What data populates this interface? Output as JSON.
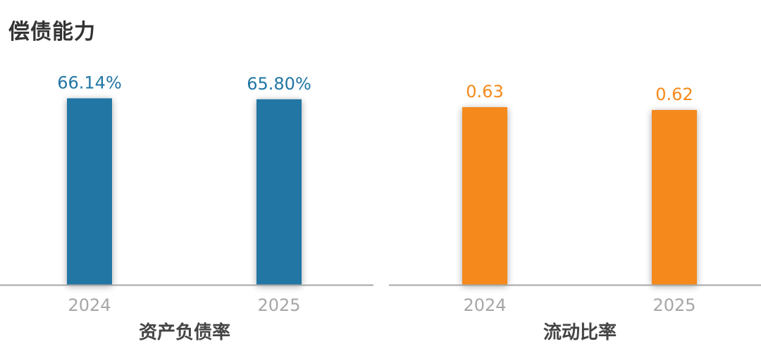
{
  "page": {
    "title": "偿债能力"
  },
  "chart_data": [
    {
      "type": "bar",
      "title": "资产负债率",
      "categories": [
        "2024",
        "2025"
      ],
      "values": [
        66.14,
        65.8
      ],
      "value_labels": [
        "66.14%",
        "65.80%"
      ],
      "unit": "%",
      "ylim": [
        0,
        100
      ],
      "color": "#2176a4",
      "label_color": "#2176a4",
      "grid": false,
      "legend": "none"
    },
    {
      "type": "bar",
      "title": "流动比率",
      "categories": [
        "2024",
        "2025"
      ],
      "values": [
        0.63,
        0.62
      ],
      "value_labels": [
        "0.63",
        "0.62"
      ],
      "ylim": [
        0,
        1
      ],
      "color": "#f5891b",
      "label_color": "#f5891b",
      "grid": false,
      "legend": "none"
    }
  ]
}
